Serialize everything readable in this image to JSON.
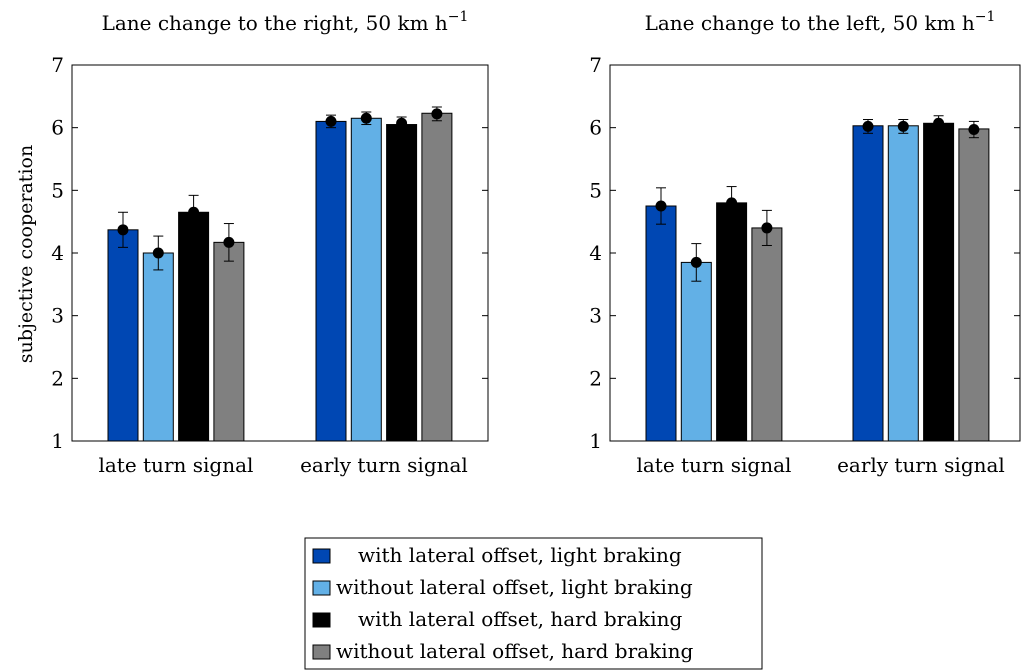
{
  "colors": {
    "with_lateral_light": "#0047B3",
    "without_lateral_light": "#62B0E6",
    "with_lateral_hard": "#000000",
    "without_lateral_hard": "#808080"
  },
  "legend": {
    "items": [
      "with lateral offset, light braking",
      "without lateral offset, light braking",
      "with lateral offset, hard braking",
      "without lateral offset, hard braking"
    ]
  },
  "chart_data": [
    {
      "type": "bar",
      "title": "Lane change to the right, 50 km h",
      "title_superscript": "−1",
      "ylabel": "subjective cooperation",
      "ylim": [
        1,
        7
      ],
      "yticks": [
        "1",
        "2",
        "3",
        "4",
        "5",
        "6",
        "7"
      ],
      "categories": [
        "late turn signal",
        "early turn signal"
      ],
      "series": [
        {
          "name": "with lateral offset, light braking",
          "values": [
            4.37,
            6.1
          ],
          "means": [
            4.37,
            6.1
          ],
          "errors": [
            0.28,
            0.1
          ]
        },
        {
          "name": "without lateral offset, light braking",
          "values": [
            4.0,
            6.15
          ],
          "means": [
            4.0,
            6.15
          ],
          "errors": [
            0.27,
            0.1
          ]
        },
        {
          "name": "with lateral offset, hard braking",
          "values": [
            4.65,
            6.05
          ],
          "means": [
            4.65,
            6.07
          ],
          "errors": [
            0.27,
            0.1
          ]
        },
        {
          "name": "without lateral offset, hard braking",
          "values": [
            4.17,
            6.23
          ],
          "means": [
            4.17,
            6.22
          ],
          "errors": [
            0.3,
            0.11
          ]
        }
      ]
    },
    {
      "type": "bar",
      "title": "Lane change to the left, 50 km h",
      "title_superscript": "−1",
      "ylabel": "",
      "ylim": [
        1,
        7
      ],
      "yticks": [
        "1",
        "2",
        "3",
        "4",
        "5",
        "6",
        "7"
      ],
      "categories": [
        "late turn signal",
        "early turn signal"
      ],
      "series": [
        {
          "name": "with lateral offset, light braking",
          "values": [
            4.75,
            6.03
          ],
          "means": [
            4.75,
            6.02
          ],
          "errors": [
            0.29,
            0.11
          ]
        },
        {
          "name": "without lateral offset, light braking",
          "values": [
            3.85,
            6.03
          ],
          "means": [
            3.85,
            6.02
          ],
          "errors": [
            0.3,
            0.11
          ]
        },
        {
          "name": "with lateral offset, hard braking",
          "values": [
            4.8,
            6.07
          ],
          "means": [
            4.8,
            6.07
          ],
          "errors": [
            0.26,
            0.12
          ]
        },
        {
          "name": "without lateral offset, hard braking",
          "values": [
            4.4,
            5.98
          ],
          "means": [
            4.4,
            5.97
          ],
          "errors": [
            0.28,
            0.13
          ]
        }
      ]
    }
  ]
}
